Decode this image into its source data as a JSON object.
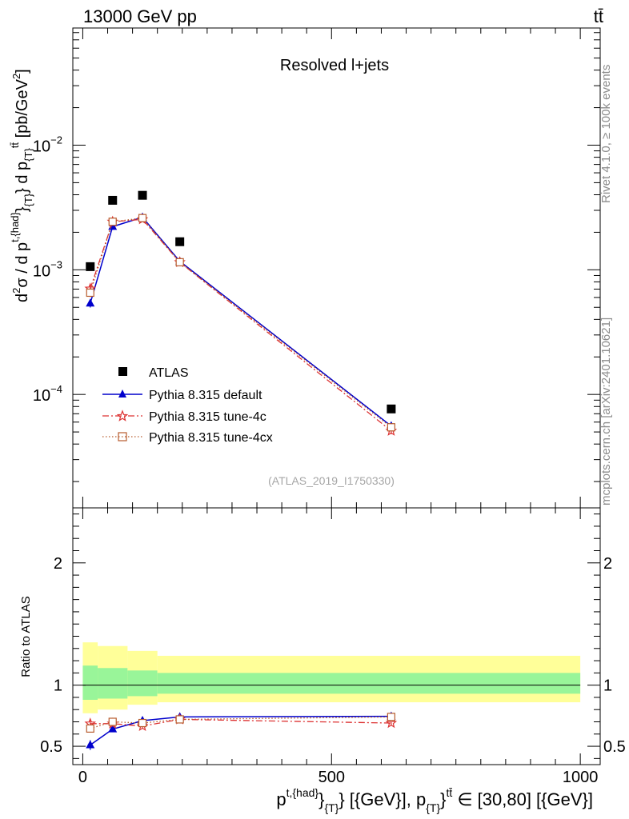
{
  "header": {
    "energy_label": "13000 GeV pp",
    "process_label": "tt̄",
    "panel_title": "Resolved l+jets",
    "analysis_id": "(ATLAS_2019_I1750330)",
    "side_label_top": "Rivet 4.1.0, ≥ 100k events",
    "side_label_bottom": "mcplots.cern.ch [arXiv:2401.10621]"
  },
  "chart_data": [
    {
      "type": "scatter",
      "panel": "main",
      "yscale": "log",
      "ylabel_parts": {
        "d2": "d",
        "sup2": "2",
        "sigma": "σ / d p",
        "sup_thad": "t,{had}",
        "sub_T1": "}",
        "sub_T2": "{T}",
        "mid": "} d p",
        "sub_T3": "{T}",
        "sup_ttbar": "tt̄",
        "unit": " [pb/GeV",
        "unit_sup": "2",
        "unit_end": "]"
      },
      "xlim": [
        -20,
        1040
      ],
      "ylim": [
        1.23e-05,
        0.0871
      ],
      "y_tick_labels": [
        {
          "value": 0.0001,
          "base": "10",
          "exp": "−4"
        },
        {
          "value": 0.001,
          "base": "10",
          "exp": "−3"
        },
        {
          "value": 0.01,
          "base": "10",
          "exp": "−2"
        }
      ],
      "x": [
        15,
        60,
        120,
        195,
        620
      ],
      "series": [
        {
          "name": "ATLAS",
          "color": "#000000",
          "marker": "square",
          "line": "none",
          "values": [
            0.00106,
            0.00361,
            0.00396,
            0.00168,
            7.65e-05
          ]
        },
        {
          "name": "Pythia 8.315 default",
          "color": "#0000cc",
          "marker": "triangle",
          "line": "solid",
          "values": [
            0.000538,
            0.00222,
            0.00264,
            0.00117,
            5.58e-05
          ],
          "errors": [
            4e-05,
            4e-05,
            6e-05,
            3e-05,
            3e-06
          ]
        },
        {
          "name": "Pythia 8.315 tune-4c",
          "color": "#dd3333",
          "marker": "star",
          "line": "dashdot",
          "values": [
            0.000705,
            0.00243,
            0.00254,
            0.00115,
            5.1e-05
          ],
          "errors": [
            5e-05,
            5e-05,
            6e-05,
            3e-05,
            3e-06
          ]
        },
        {
          "name": "Pythia 8.315 tune-4cx",
          "color": "#b85c2e",
          "marker": "open-square",
          "line": "dotted",
          "values": [
            0.000655,
            0.00243,
            0.0026,
            0.00115,
            5.45e-05
          ],
          "errors": [
            5e-05,
            5e-05,
            6e-05,
            3e-05,
            3e-06
          ]
        }
      ]
    },
    {
      "type": "line",
      "panel": "ratio",
      "ylabel": "Ratio to ATLAS",
      "xlabel_parts": {
        "p1": "p",
        "sup1": "t,{had}",
        "mid1": "}",
        "sub1": "{T}",
        "mid2": "} [{GeV}], p",
        "sub2": "{T}",
        "mid3": "}",
        "sup2": "tt̄",
        "end": " ∈ [30,80] [{GeV}]"
      },
      "xlim": [
        -20,
        1040
      ],
      "ylim": [
        0.35,
        2.45
      ],
      "x_ticks": [
        0,
        500,
        1000
      ],
      "x_tick_labels": [
        "0",
        "500",
        "1000"
      ],
      "y_ticks": [
        0.5,
        1,
        2
      ],
      "y_tick_labels": [
        "0.5",
        "1",
        "2"
      ],
      "x": [
        15,
        60,
        120,
        195,
        620
      ],
      "bands": [
        {
          "x0": 0,
          "x1": 30,
          "inner": [
            0.88,
            1.16
          ],
          "outer": [
            0.77,
            1.35
          ]
        },
        {
          "x0": 30,
          "x1": 90,
          "inner": [
            0.89,
            1.14
          ],
          "outer": [
            0.8,
            1.32
          ]
        },
        {
          "x0": 90,
          "x1": 150,
          "inner": [
            0.91,
            1.12
          ],
          "outer": [
            0.84,
            1.28
          ]
        },
        {
          "x0": 150,
          "x1": 1000,
          "inner": [
            0.93,
            1.1
          ],
          "outer": [
            0.86,
            1.24
          ]
        }
      ],
      "series": [
        {
          "name": "Pythia 8.315 default",
          "color": "#0000cc",
          "marker": "triangle",
          "line": "solid",
          "values": [
            0.51,
            0.64,
            0.71,
            0.74,
            0.745
          ],
          "errors": [
            0.04,
            0.015,
            0.02,
            0.015,
            0.02
          ]
        },
        {
          "name": "Pythia 8.315 tune-4c",
          "color": "#dd3333",
          "marker": "star",
          "line": "dashdot",
          "values": [
            0.685,
            0.685,
            0.665,
            0.72,
            0.69
          ],
          "errors": [
            0.03,
            0.015,
            0.02,
            0.015,
            0.02
          ]
        },
        {
          "name": "Pythia 8.315 tune-4cx",
          "color": "#b85c2e",
          "marker": "open-square",
          "line": "dotted",
          "values": [
            0.645,
            0.7,
            0.69,
            0.72,
            0.74
          ],
          "errors": [
            0.03,
            0.015,
            0.02,
            0.015,
            0.02
          ]
        }
      ]
    }
  ]
}
